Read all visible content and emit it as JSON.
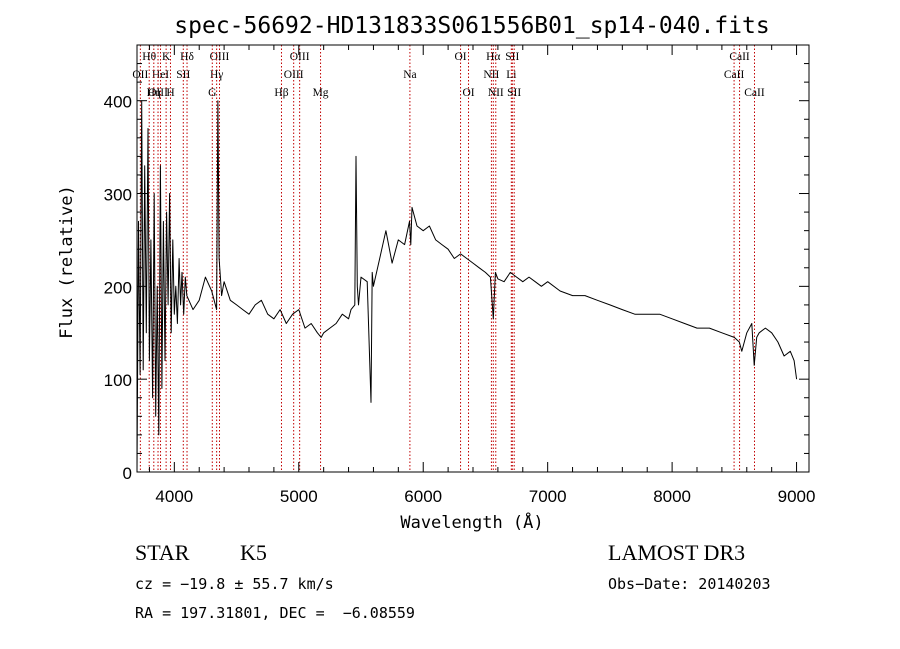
{
  "chart_data": {
    "type": "line",
    "title": "spec-56692-HD131833S061556B01_sp14-040.fits",
    "xlabel": "Wavelength (Å)",
    "ylabel": "Flux (relative)",
    "xlim": [
      3700,
      9100
    ],
    "ylim": [
      0,
      460
    ],
    "xticks": [
      4000,
      5000,
      6000,
      7000,
      8000,
      9000
    ],
    "yticks": [
      0,
      100,
      200,
      300,
      400
    ],
    "xtick_labels": [
      "4000",
      "5000",
      "6000",
      "7000",
      "8000",
      "9000"
    ],
    "ytick_labels": [
      "0",
      "100",
      "200",
      "300",
      "400"
    ],
    "grid": false,
    "series": [
      {
        "color": "#000000",
        "x": [
          3700,
          3712,
          3725,
          3738,
          3750,
          3762,
          3775,
          3788,
          3800,
          3812,
          3825,
          3838,
          3850,
          3862,
          3875,
          3888,
          3900,
          3912,
          3925,
          3938,
          3950,
          3962,
          3975,
          3988,
          4000,
          4012,
          4025,
          4038,
          4050,
          4062,
          4075,
          4088,
          4100,
          4150,
          4200,
          4250,
          4300,
          4340,
          4350,
          4360,
          4370,
          4380,
          4400,
          4450,
          4500,
          4550,
          4600,
          4650,
          4700,
          4750,
          4800,
          4850,
          4900,
          4950,
          5000,
          5050,
          5100,
          5150,
          5180,
          5200,
          5250,
          5300,
          5350,
          5400,
          5420,
          5450,
          5460,
          5470,
          5480,
          5500,
          5550,
          5580,
          5590,
          5600,
          5650,
          5700,
          5750,
          5800,
          5850,
          5890,
          5900,
          5910,
          5950,
          6000,
          6050,
          6100,
          6150,
          6200,
          6250,
          6300,
          6350,
          6400,
          6450,
          6500,
          6540,
          6563,
          6580,
          6600,
          6650,
          6700,
          6750,
          6800,
          6850,
          6900,
          6950,
          7000,
          7100,
          7200,
          7300,
          7400,
          7500,
          7600,
          7700,
          7800,
          7900,
          8000,
          8100,
          8200,
          8300,
          8400,
          8500,
          8540,
          8560,
          8600,
          8640,
          8660,
          8680,
          8700,
          8750,
          8800,
          8850,
          8900,
          8950,
          8980,
          9000
        ],
        "y": [
          0,
          270,
          105,
          400,
          110,
          330,
          150,
          370,
          120,
          250,
          80,
          300,
          60,
          200,
          40,
          330,
          90,
          270,
          120,
          280,
          180,
          300,
          150,
          250,
          170,
          200,
          160,
          230,
          180,
          215,
          170,
          210,
          190,
          175,
          185,
          210,
          195,
          175,
          400,
          230,
          210,
          190,
          205,
          185,
          180,
          175,
          170,
          180,
          185,
          170,
          165,
          175,
          160,
          170,
          175,
          155,
          160,
          150,
          145,
          150,
          155,
          160,
          170,
          165,
          175,
          180,
          340,
          200,
          180,
          210,
          205,
          75,
          215,
          200,
          230,
          260,
          225,
          250,
          245,
          270,
          245,
          285,
          265,
          260,
          265,
          250,
          245,
          240,
          230,
          235,
          230,
          225,
          220,
          215,
          210,
          165,
          215,
          208,
          205,
          215,
          210,
          205,
          210,
          205,
          200,
          205,
          195,
          190,
          190,
          185,
          180,
          175,
          170,
          170,
          170,
          165,
          160,
          155,
          155,
          150,
          145,
          140,
          130,
          150,
          160,
          115,
          145,
          150,
          155,
          150,
          140,
          125,
          130,
          120,
          100
        ]
      }
    ],
    "line_markers": [
      {
        "label": "Hθ",
        "x": 3798,
        "row": 0
      },
      {
        "label": "K",
        "x": 3934,
        "row": 0
      },
      {
        "label": "Hδ",
        "x": 4102,
        "row": 0
      },
      {
        "label": "OII",
        "x": 3727,
        "row": 1
      },
      {
        "label": "HeI",
        "x": 3889,
        "row": 1
      },
      {
        "label": "SII",
        "x": 4072,
        "row": 1
      },
      {
        "label": "OIII",
        "x": 3869,
        "row": 2
      },
      {
        "label": "Hη",
        "x": 3835,
        "row": 2
      },
      {
        "label": "H",
        "x": 3969,
        "row": 2
      },
      {
        "label": "OIII",
        "x": 4363,
        "row": 0
      },
      {
        "label": "Hγ",
        "x": 4340,
        "row": 1
      },
      {
        "label": "G",
        "x": 4305,
        "row": 2
      },
      {
        "label": "Hβ",
        "x": 4861,
        "row": 2
      },
      {
        "label": "OIII",
        "x": 5007,
        "row": 0
      },
      {
        "label": "OIII",
        "x": 4959,
        "row": 1
      },
      {
        "label": "Mg",
        "x": 5175,
        "row": 2
      },
      {
        "label": "Na",
        "x": 5893,
        "row": 1
      },
      {
        "label": "OI",
        "x": 6300,
        "row": 0
      },
      {
        "label": "OI",
        "x": 6364,
        "row": 2
      },
      {
        "label": "Hα",
        "x": 6563,
        "row": 0
      },
      {
        "label": "NII",
        "x": 6548,
        "row": 1
      },
      {
        "label": "NII",
        "x": 6583,
        "row": 2
      },
      {
        "label": "SII",
        "x": 6716,
        "row": 0
      },
      {
        "label": "Li",
        "x": 6708,
        "row": 1
      },
      {
        "label": "SII",
        "x": 6731,
        "row": 2
      },
      {
        "label": "CaII",
        "x": 8542,
        "row": 0
      },
      {
        "label": "CaII",
        "x": 8498,
        "row": 1
      },
      {
        "label": "CaII",
        "x": 8662,
        "row": 2
      }
    ]
  },
  "info": {
    "object_class": "STAR",
    "subclass": "K5",
    "survey": "LAMOST DR3",
    "cz": "cz = −19.8 ± 55.7 km/s",
    "obs_date": "Obs−Date: 20140203",
    "coords": "RA = 197.31801, DEC =  −6.08559"
  }
}
